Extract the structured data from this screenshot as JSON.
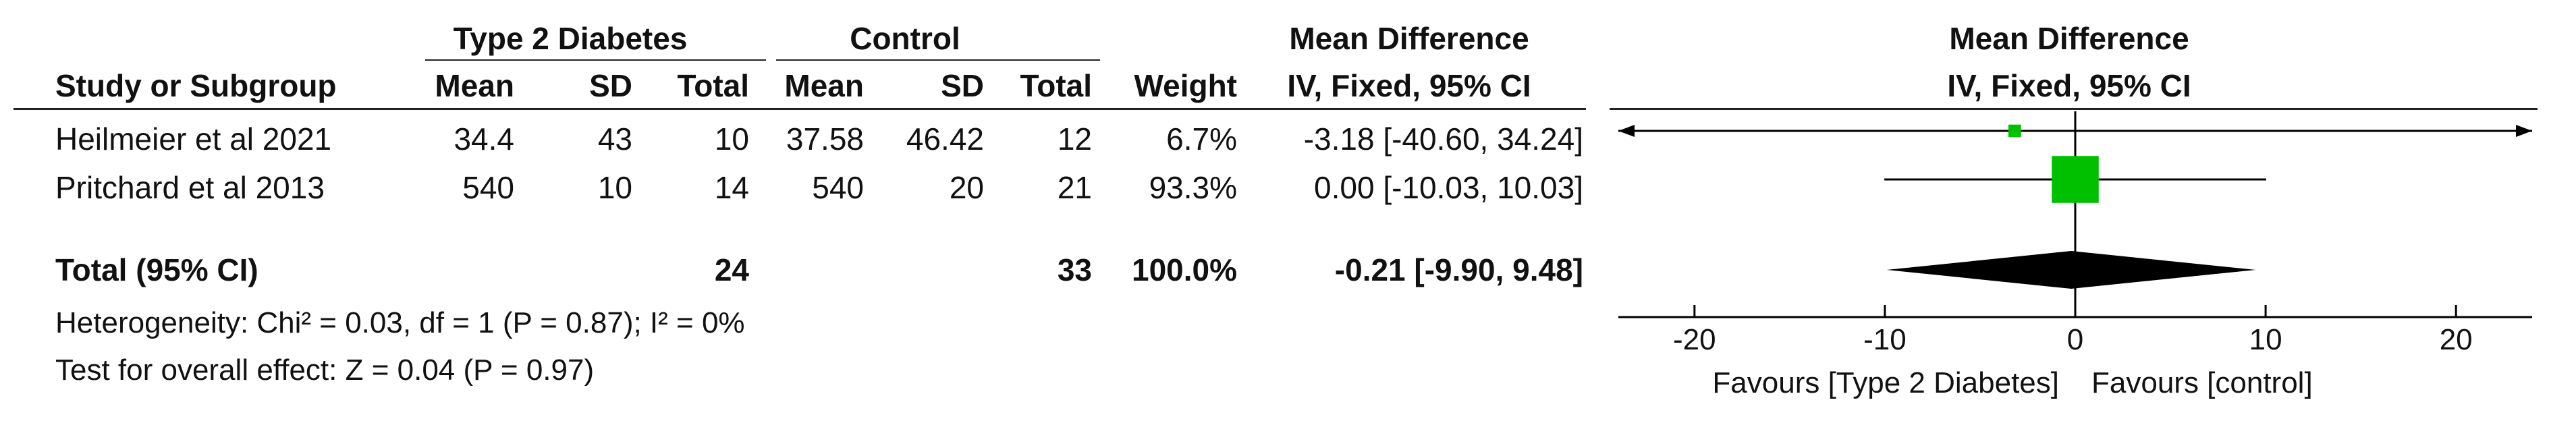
{
  "chart_data": {
    "type": "forest",
    "groups": {
      "experimental": "Type 2 Diabetes",
      "control": "Control"
    },
    "columns": {
      "study": "Study or Subgroup",
      "mean": "Mean",
      "sd": "SD",
      "total": "Total",
      "weight": "Weight",
      "effect_title": "Mean Difference",
      "effect_method": "IV, Fixed, 95% CI"
    },
    "studies": [
      {
        "name": "Heilmeier et al 2021",
        "exp_mean": "34.4",
        "exp_sd": "43",
        "exp_total": "10",
        "ctl_mean": "37.58",
        "ctl_sd": "46.42",
        "ctl_total": "12",
        "weight_text": "6.7%",
        "ci_text": "-3.18 [-40.60, 34.24]",
        "md": -3.18,
        "lower": -40.6,
        "upper": 34.24,
        "weight": 6.7
      },
      {
        "name": "Pritchard et al 2013",
        "exp_mean": "540",
        "exp_sd": "10",
        "exp_total": "14",
        "ctl_mean": "540",
        "ctl_sd": "20",
        "ctl_total": "21",
        "weight_text": "93.3%",
        "ci_text": "0.00 [-10.03, 10.03]",
        "md": 0.0,
        "lower": -10.03,
        "upper": 10.03,
        "weight": 93.3
      }
    ],
    "total": {
      "label": "Total (95% CI)",
      "exp_total": "24",
      "ctl_total": "33",
      "weight_text": "100.0%",
      "ci_text": "-0.21 [-9.90, 9.48]",
      "md": -0.21,
      "lower": -9.9,
      "upper": 9.48
    },
    "heterogeneity": "Heterogeneity: Chi² = 0.03, df = 1 (P = 0.87); I² = 0%",
    "overall_effect": "Test for overall effect: Z = 0.04 (P = 0.97)",
    "axis": {
      "xlim": [
        -24,
        24
      ],
      "ticks": [
        -20,
        -10,
        0,
        10,
        20
      ],
      "tick_labels": [
        "-20",
        "-10",
        "0",
        "10",
        "20"
      ],
      "favours_left": "Favours [Type 2 Diabetes]",
      "favours_right": "Favours [control]"
    },
    "colors": {
      "square": "#00c000",
      "diamond": "#000000",
      "line": "#000000"
    }
  }
}
